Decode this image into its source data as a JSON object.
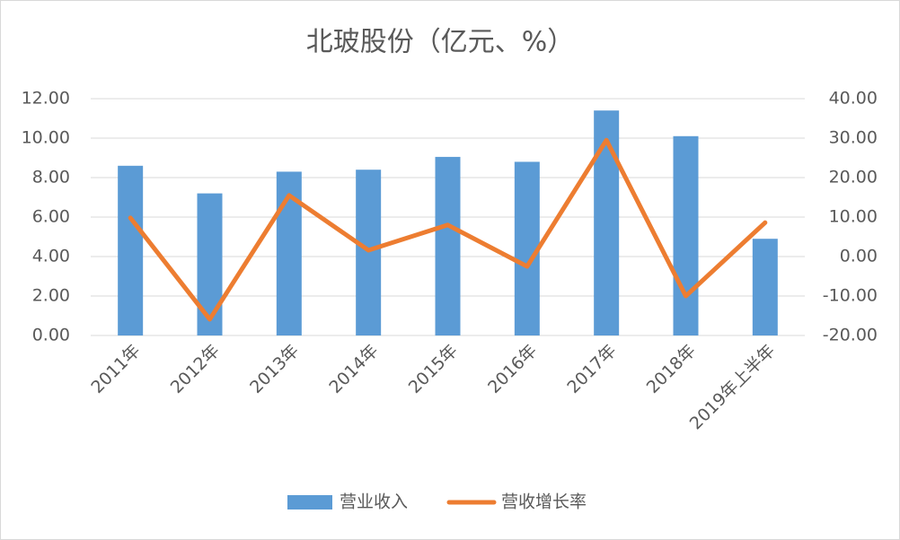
{
  "chart_data": {
    "type": "bar",
    "title": "北玻股份（亿元、%）",
    "categories": [
      "2011年",
      "2012年",
      "2013年",
      "2014年",
      "2015年",
      "2016年",
      "2017年",
      "2018年",
      "2019年上半年"
    ],
    "series": [
      {
        "name": "营业收入",
        "type": "bar",
        "color": "#5b9bd5",
        "values": [
          8.6,
          7.2,
          8.3,
          8.4,
          9.05,
          8.8,
          11.4,
          10.1,
          4.9
        ]
      },
      {
        "name": "营收增长率",
        "type": "line",
        "axis": "y2",
        "color": "#ed7d31",
        "values": [
          9.8,
          -15.9,
          15.5,
          1.6,
          8.0,
          -2.5,
          29.5,
          -10,
          8.6
        ]
      }
    ],
    "ylim": [
      0,
      12
    ],
    "yticks": [
      {
        "value": 0,
        "label": "0.00"
      },
      {
        "value": 2,
        "label": "2.00"
      },
      {
        "value": 4,
        "label": "4.00"
      },
      {
        "value": 6,
        "label": "6.00"
      },
      {
        "value": 8,
        "label": "8.00"
      },
      {
        "value": 10,
        "label": "10.00"
      },
      {
        "value": 12,
        "label": "12.00"
      }
    ],
    "y2lim": [
      -20,
      40
    ],
    "y2ticks": [
      {
        "value": -20,
        "label": "-20.00"
      },
      {
        "value": -10,
        "label": "-10.00"
      },
      {
        "value": 0,
        "label": "0.00"
      },
      {
        "value": 10,
        "label": "10.00"
      },
      {
        "value": 20,
        "label": "20.00"
      },
      {
        "value": 30,
        "label": "30.00"
      },
      {
        "value": 40,
        "label": "40.00"
      }
    ],
    "grid": true,
    "legend": "bottom"
  }
}
